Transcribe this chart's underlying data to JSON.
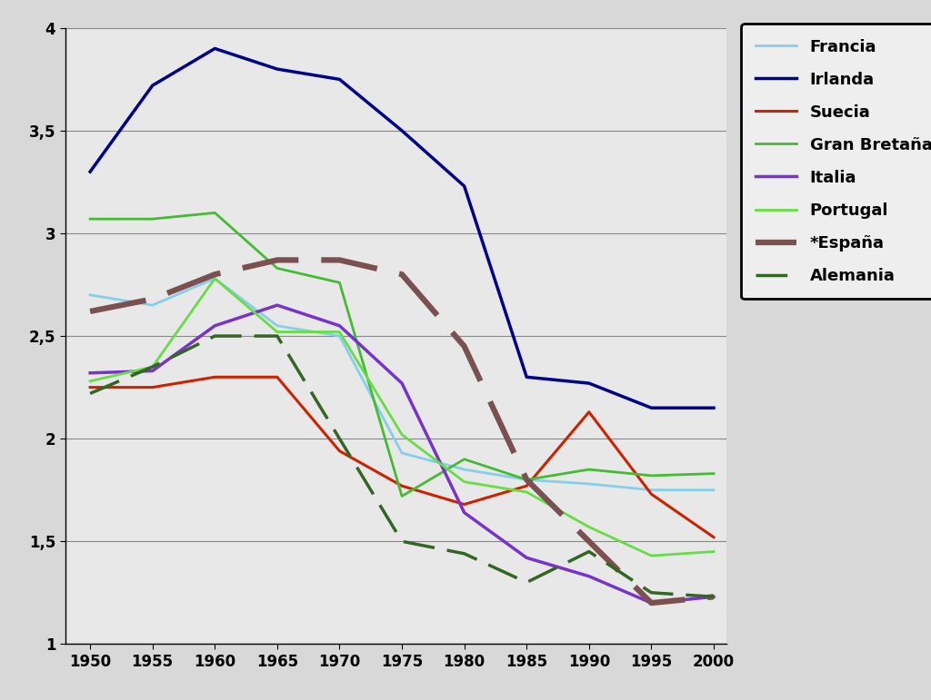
{
  "years": [
    1950,
    1955,
    1960,
    1965,
    1970,
    1975,
    1980,
    1985,
    1990,
    1995,
    2000
  ],
  "Francia": [
    2.7,
    2.65,
    2.78,
    2.55,
    2.5,
    1.93,
    1.85,
    1.8,
    1.78,
    1.75,
    1.75
  ],
  "Irlanda": [
    3.3,
    3.72,
    3.9,
    3.8,
    3.75,
    3.5,
    3.23,
    2.3,
    2.27,
    2.15,
    2.15
  ],
  "Suecia": [
    2.25,
    2.25,
    2.3,
    2.3,
    1.94,
    1.77,
    1.68,
    1.77,
    2.13,
    1.73,
    1.52
  ],
  "Gran_Bretana": [
    3.07,
    3.07,
    3.1,
    2.83,
    2.76,
    1.72,
    1.9,
    1.8,
    1.85,
    1.82,
    1.83
  ],
  "Italia": [
    2.32,
    2.33,
    2.55,
    2.65,
    2.55,
    2.27,
    1.64,
    1.42,
    1.33,
    1.2,
    1.23
  ],
  "Portugal": [
    2.28,
    2.35,
    2.78,
    2.52,
    2.52,
    2.02,
    1.79,
    1.74,
    1.57,
    1.43,
    1.45
  ],
  "Espana": [
    2.62,
    2.68,
    2.8,
    2.87,
    2.87,
    2.8,
    2.45,
    1.8,
    1.5,
    1.2,
    1.23
  ],
  "Alemania": [
    2.22,
    2.35,
    2.5,
    2.5,
    2.0,
    1.5,
    1.44,
    1.3,
    1.45,
    1.25,
    1.23
  ],
  "colors": {
    "Francia": "#87CEEB",
    "Irlanda": "#00008B",
    "Suecia": "#CC2200",
    "Gran_Bretana": "#44BB33",
    "Italia": "#7733CC",
    "Portugal": "#66DD44",
    "Espana": "#7B5050",
    "Alemania": "#336622"
  },
  "linestyles": {
    "Francia": "solid",
    "Irlanda": "solid",
    "Suecia": "solid",
    "Gran_Bretana": "solid",
    "Italia": "solid",
    "Portugal": "solid",
    "Espana": "dashed",
    "Alemania": "dashed"
  },
  "linewidths": {
    "Francia": 2.0,
    "Irlanda": 2.5,
    "Suecia": 2.2,
    "Gran_Bretana": 2.0,
    "Italia": 2.5,
    "Portugal": 2.0,
    "Espana": 4.5,
    "Alemania": 2.5
  },
  "legend_labels": {
    "Francia": "Francia",
    "Irlanda": "Irlanda",
    "Suecia": "Suecia",
    "Gran_Bretana": "Gran Bretaña",
    "Italia": "Italia",
    "Portugal": "Portugal",
    "Espana": "*España",
    "Alemania": "Alemania"
  },
  "fig_bg": "#D8D8D8",
  "plot_bg": "#E8E8E8",
  "ylim": [
    1.0,
    4.0
  ],
  "yticks": [
    1.0,
    1.5,
    2.0,
    2.5,
    3.0,
    3.5,
    4.0
  ],
  "ytick_labels": [
    "1",
    "1,5",
    "2",
    "2,5",
    "3",
    "3,5",
    "4"
  ],
  "xticks": [
    1950,
    1955,
    1960,
    1965,
    1970,
    1975,
    1980,
    1985,
    1990,
    1995,
    2000
  ],
  "figsize": [
    10.24,
    7.71
  ]
}
